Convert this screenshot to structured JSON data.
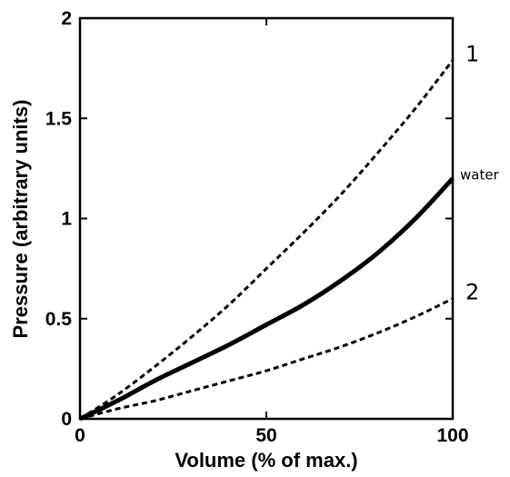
{
  "chart_data": {
    "type": "line",
    "xlabel": "Volume (% of max.)",
    "ylabel": "Pressure (arbitrary units)",
    "xlim": [
      0,
      100
    ],
    "ylim": [
      0,
      2
    ],
    "xticks": [
      0,
      50,
      100
    ],
    "xtick_labels": [
      "0",
      "50",
      "100"
    ],
    "yticks": [
      0,
      0.5,
      1,
      1.5,
      2
    ],
    "ytick_labels": [
      "0",
      "0.5",
      "1",
      "1.5",
      "2"
    ],
    "grid": false,
    "legend": "none",
    "series": [
      {
        "name": "1",
        "style": "dashed",
        "color": "#000000",
        "x": [
          0,
          10,
          20,
          30,
          40,
          50,
          60,
          70,
          80,
          90,
          100
        ],
        "y": [
          0,
          0.12,
          0.26,
          0.41,
          0.57,
          0.75,
          0.93,
          1.12,
          1.33,
          1.55,
          1.79
        ]
      },
      {
        "name": "water",
        "style": "solid",
        "color": "#000000",
        "x": [
          0,
          10,
          20,
          30,
          40,
          50,
          60,
          70,
          80,
          90,
          100
        ],
        "y": [
          0,
          0.09,
          0.19,
          0.28,
          0.37,
          0.47,
          0.57,
          0.69,
          0.83,
          1.0,
          1.2
        ]
      },
      {
        "name": "2",
        "style": "dashed",
        "color": "#000000",
        "x": [
          0,
          10,
          20,
          30,
          40,
          50,
          60,
          70,
          80,
          90,
          100
        ],
        "y": [
          0,
          0.05,
          0.09,
          0.14,
          0.19,
          0.24,
          0.3,
          0.36,
          0.43,
          0.51,
          0.6
        ]
      }
    ]
  }
}
